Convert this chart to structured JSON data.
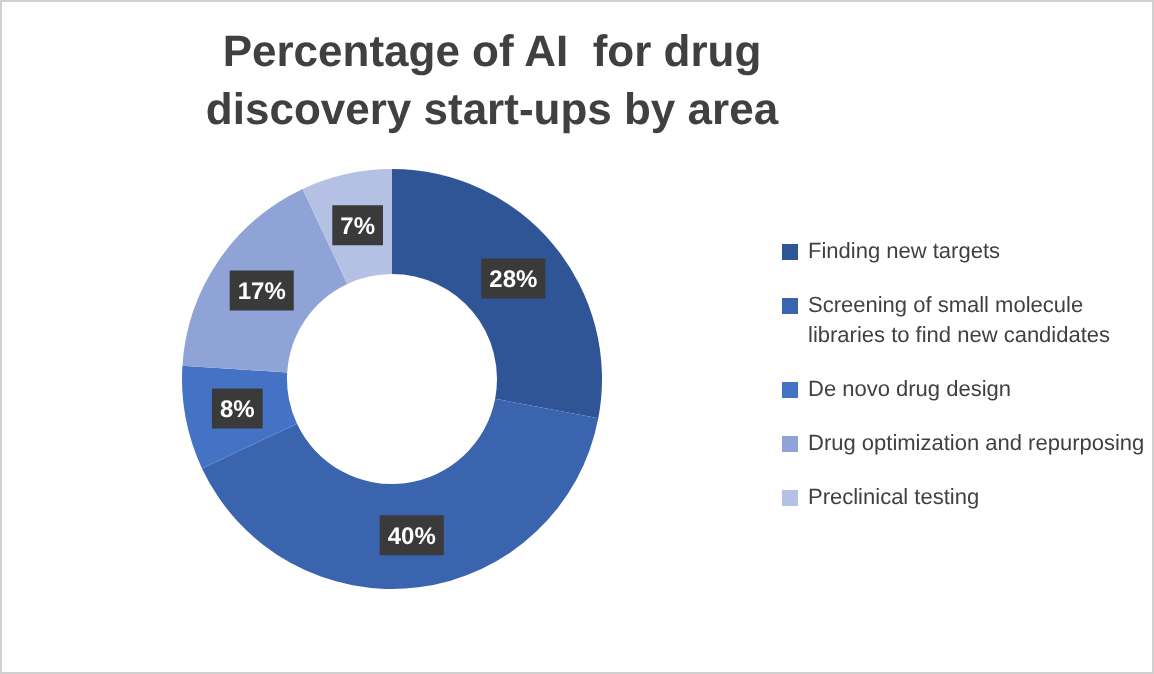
{
  "chart_data": {
    "type": "donut",
    "title": "Percentage of AI  for drug discovery start-ups by area",
    "categories": [
      "Finding new targets",
      "Screening of small molecule libraries to find new candidates",
      "De novo drug design",
      "Drug optimization and repurposing",
      "Preclinical testing"
    ],
    "values": [
      28,
      40,
      8,
      17,
      7
    ],
    "value_labels": [
      "28%",
      "40%",
      "8%",
      "17%",
      "7%"
    ],
    "colors": [
      "#2f5597",
      "#3a64ad",
      "#4472c4",
      "#8fa3d6",
      "#b4c0e4"
    ],
    "legend": "right"
  }
}
